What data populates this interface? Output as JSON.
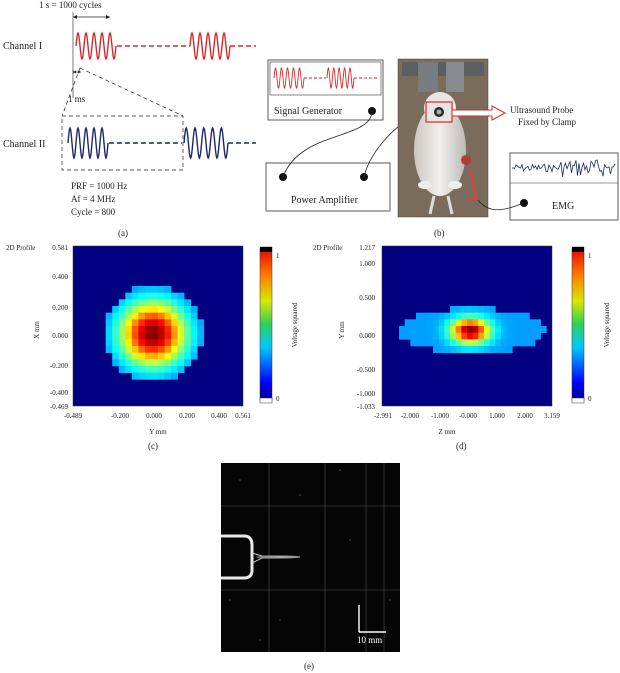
{
  "panel_a": {
    "timing_label": "1 s = 1000 cycles",
    "channel_1": "Channel I",
    "channel_2": "Channel II",
    "ms_label": "1 ms",
    "prf": "PRF = 1000 Hz",
    "af": "Af = 4 MHz",
    "cycle": "Cycle = 800",
    "caption": "(a)"
  },
  "panel_b": {
    "signal_generator": "Signal Generator",
    "power_amplifier": "Power Amplifier",
    "probe_line1": "Ultrasound Probe",
    "probe_line2": "Fixed by Clamp",
    "emg": "EMG",
    "caption": "(b)"
  },
  "panel_c": {
    "profile_label": "2D Profile",
    "ylabel": "X mm",
    "xlabel": "Y mm",
    "y_ticks": [
      "0.581",
      "0.400",
      "0.200",
      "0.000",
      "-0.200",
      "-0.400",
      "-0.469"
    ],
    "x_ticks": [
      "-0.489",
      "-0.200",
      "0.000",
      "0.200",
      "0.400",
      "0.561"
    ],
    "colorbar_label": "Voltage squared",
    "cb_max": "1",
    "cb_min": "0",
    "caption": "(c)"
  },
  "panel_d": {
    "profile_label": "2D Profile",
    "ylabel": "Y mm",
    "xlabel": "Z mm",
    "y_ticks": [
      "1.217",
      "1.000",
      "0.500",
      "0.000",
      "-0.500",
      "-1.000",
      "-1.033"
    ],
    "x_ticks": [
      "-2.991",
      "-2.000",
      "-1.000",
      "-0.000",
      "1.000",
      "2.000",
      "3.159"
    ],
    "colorbar_label": "Voltage squared",
    "cb_max": "1",
    "cb_min": "0",
    "caption": "(d)"
  },
  "panel_e": {
    "scale_label": "10 mm",
    "caption": "(e)"
  },
  "colors": {
    "channel1": "#d62b2b",
    "channel2": "#1b2a6b",
    "heatmap_bg": "#000080"
  }
}
